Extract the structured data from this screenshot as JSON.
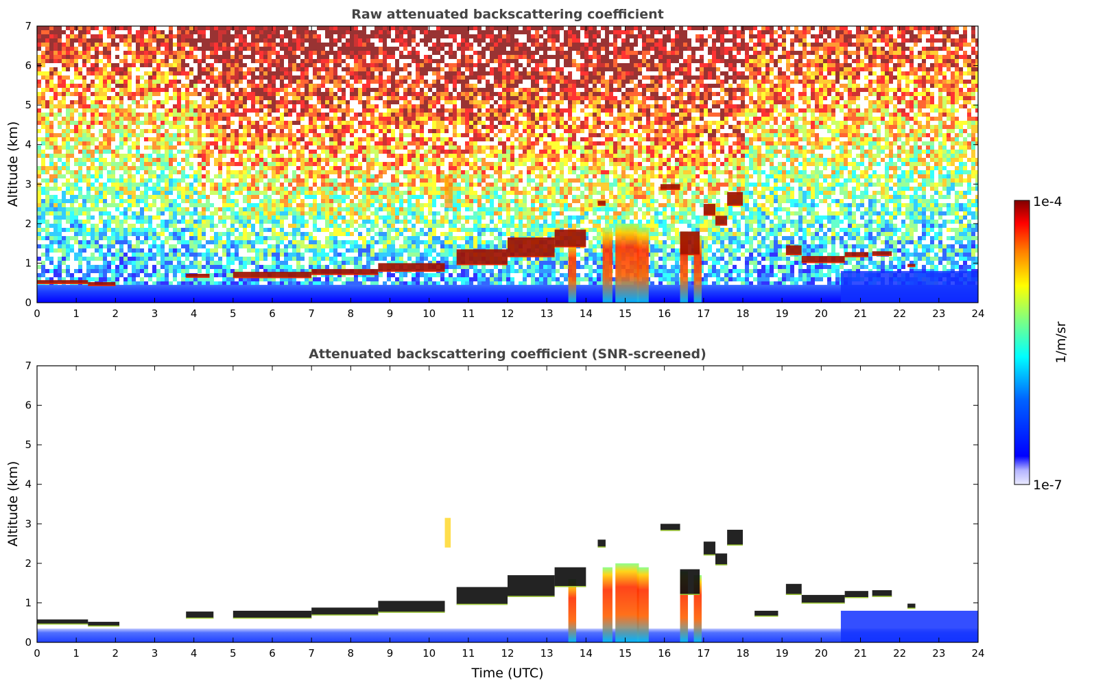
{
  "chart_data": [
    {
      "type": "heatmap",
      "title": "Raw attenuated backscattering coefficient",
      "ylabel": "Altitude (km)",
      "xlabel": "",
      "xlim": [
        0,
        24
      ],
      "ylim": [
        0,
        7
      ],
      "x_ticks": [
        "0",
        "1",
        "2",
        "3",
        "4",
        "5",
        "6",
        "7",
        "8",
        "9",
        "10",
        "11",
        "12",
        "13",
        "14",
        "15",
        "16",
        "17",
        "18",
        "19",
        "20",
        "21",
        "22",
        "23",
        "24"
      ],
      "y_ticks": [
        "0",
        "1",
        "2",
        "3",
        "4",
        "5",
        "6",
        "7"
      ],
      "noise_background": true,
      "layers": [
        {
          "x0": 0.0,
          "x1": 1.3,
          "y0": 0.47,
          "y1": 0.57
        },
        {
          "x0": 1.3,
          "x1": 2.0,
          "y0": 0.42,
          "y1": 0.52
        },
        {
          "x0": 3.8,
          "x1": 4.4,
          "y0": 0.63,
          "y1": 0.73
        },
        {
          "x0": 5.0,
          "x1": 7.0,
          "y0": 0.62,
          "y1": 0.78
        },
        {
          "x0": 7.0,
          "x1": 8.7,
          "y0": 0.7,
          "y1": 0.85
        },
        {
          "x0": 8.7,
          "x1": 10.4,
          "y0": 0.78,
          "y1": 1.0
        },
        {
          "x0": 10.7,
          "x1": 12.0,
          "y0": 0.95,
          "y1": 1.35
        },
        {
          "x0": 12.0,
          "x1": 13.2,
          "y0": 1.15,
          "y1": 1.65
        },
        {
          "x0": 13.2,
          "x1": 14.0,
          "y0": 1.4,
          "y1": 1.85
        },
        {
          "x0": 14.3,
          "x1": 14.5,
          "y0": 2.45,
          "y1": 2.58
        },
        {
          "x0": 15.9,
          "x1": 16.4,
          "y0": 2.85,
          "y1": 3.0
        },
        {
          "x0": 16.4,
          "x1": 16.9,
          "y0": 1.2,
          "y1": 1.8
        },
        {
          "x0": 17.0,
          "x1": 17.3,
          "y0": 2.2,
          "y1": 2.5
        },
        {
          "x0": 17.3,
          "x1": 17.6,
          "y0": 1.95,
          "y1": 2.2
        },
        {
          "x0": 17.6,
          "x1": 18.0,
          "y0": 2.45,
          "y1": 2.8
        },
        {
          "x0": 19.1,
          "x1": 19.5,
          "y0": 1.2,
          "y1": 1.45
        },
        {
          "x0": 19.5,
          "x1": 20.6,
          "y0": 1.0,
          "y1": 1.18
        },
        {
          "x0": 20.6,
          "x1": 21.2,
          "y0": 1.15,
          "y1": 1.28
        },
        {
          "x0": 21.3,
          "x1": 21.8,
          "y0": 1.18,
          "y1": 1.3
        },
        {
          "x0": 22.2,
          "x1": 22.4,
          "y0": 0.9,
          "y1": 0.98
        }
      ],
      "plumes": [
        {
          "x": 13.65,
          "w": 0.2,
          "y1": 1.6
        },
        {
          "x": 14.55,
          "w": 0.25,
          "y1": 1.9
        },
        {
          "x": 15.05,
          "w": 0.6,
          "y1": 2.0
        },
        {
          "x": 15.45,
          "w": 0.3,
          "y1": 1.9
        },
        {
          "x": 16.5,
          "w": 0.2,
          "y1": 1.8
        },
        {
          "x": 16.85,
          "w": 0.2,
          "y1": 1.7
        }
      ],
      "aerosol_spot": {
        "x0": 10.4,
        "x1": 10.6,
        "y0": 2.4,
        "y1": 3.2
      }
    },
    {
      "type": "heatmap",
      "title": "Attenuated backscattering coefficient (SNR-screened)",
      "ylabel": "Altitude (km)",
      "xlabel": "Time (UTC)",
      "xlim": [
        0,
        24
      ],
      "ylim": [
        0,
        7
      ],
      "x_ticks": [
        "0",
        "1",
        "2",
        "3",
        "4",
        "5",
        "6",
        "7",
        "8",
        "9",
        "10",
        "11",
        "12",
        "13",
        "14",
        "15",
        "16",
        "17",
        "18",
        "19",
        "20",
        "21",
        "22",
        "23",
        "24"
      ],
      "y_ticks": [
        "0",
        "1",
        "2",
        "3",
        "4",
        "5",
        "6",
        "7"
      ],
      "noise_background": false,
      "layers": [
        {
          "x0": 0.0,
          "x1": 1.3,
          "y0": 0.45,
          "y1": 0.58
        },
        {
          "x0": 1.3,
          "x1": 2.1,
          "y0": 0.4,
          "y1": 0.52
        },
        {
          "x0": 3.8,
          "x1": 4.5,
          "y0": 0.6,
          "y1": 0.78
        },
        {
          "x0": 5.0,
          "x1": 7.0,
          "y0": 0.6,
          "y1": 0.8
        },
        {
          "x0": 7.0,
          "x1": 8.7,
          "y0": 0.68,
          "y1": 0.88
        },
        {
          "x0": 8.7,
          "x1": 10.4,
          "y0": 0.75,
          "y1": 1.05
        },
        {
          "x0": 10.7,
          "x1": 12.0,
          "y0": 0.95,
          "y1": 1.4
        },
        {
          "x0": 12.0,
          "x1": 13.2,
          "y0": 1.15,
          "y1": 1.7
        },
        {
          "x0": 13.2,
          "x1": 14.0,
          "y0": 1.4,
          "y1": 1.9
        },
        {
          "x0": 14.3,
          "x1": 14.5,
          "y0": 2.4,
          "y1": 2.6
        },
        {
          "x0": 15.9,
          "x1": 16.4,
          "y0": 2.82,
          "y1": 3.0
        },
        {
          "x0": 16.4,
          "x1": 16.9,
          "y0": 1.2,
          "y1": 1.85
        },
        {
          "x0": 17.0,
          "x1": 17.3,
          "y0": 2.2,
          "y1": 2.55
        },
        {
          "x0": 17.3,
          "x1": 17.6,
          "y0": 1.95,
          "y1": 2.25
        },
        {
          "x0": 17.6,
          "x1": 18.0,
          "y0": 2.45,
          "y1": 2.85
        },
        {
          "x0": 19.1,
          "x1": 19.5,
          "y0": 1.2,
          "y1": 1.48
        },
        {
          "x0": 19.5,
          "x1": 20.6,
          "y0": 0.98,
          "y1": 1.2
        },
        {
          "x0": 20.6,
          "x1": 21.2,
          "y0": 1.12,
          "y1": 1.3
        },
        {
          "x0": 21.3,
          "x1": 21.8,
          "y0": 1.15,
          "y1": 1.32
        },
        {
          "x0": 18.3,
          "x1": 18.9,
          "y0": 0.65,
          "y1": 0.8
        },
        {
          "x0": 22.2,
          "x1": 22.4,
          "y0": 0.85,
          "y1": 0.98
        }
      ],
      "plumes": [
        {
          "x": 13.65,
          "w": 0.2,
          "y1": 1.6
        },
        {
          "x": 14.55,
          "w": 0.25,
          "y1": 1.9
        },
        {
          "x": 15.05,
          "w": 0.6,
          "y1": 2.0
        },
        {
          "x": 15.45,
          "w": 0.3,
          "y1": 1.9
        },
        {
          "x": 16.5,
          "w": 0.2,
          "y1": 1.8
        },
        {
          "x": 16.85,
          "w": 0.2,
          "y1": 1.7
        }
      ],
      "aerosol_spot": {
        "x0": 10.4,
        "x1": 10.55,
        "y0": 2.4,
        "y1": 3.15
      }
    }
  ],
  "colorbar": {
    "max_label": "1e-4",
    "min_label": "1e-7",
    "unit_label": "1/m/sr",
    "colors": [
      "#800000",
      "#ff0000",
      "#ff8000",
      "#ffff00",
      "#80ff80",
      "#00ffff",
      "#0080ff",
      "#0000ff",
      "#e6e6ff"
    ]
  }
}
